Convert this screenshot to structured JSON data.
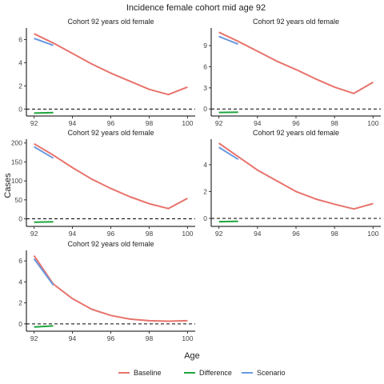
{
  "figure": {
    "title": "Incidence female cohort mid age 92",
    "xlabel": "Age",
    "ylabel": "Cases"
  },
  "legend": {
    "items": [
      {
        "label": "Baseline",
        "color": "#E8736C"
      },
      {
        "label": "Difference",
        "color": "#1EA53D"
      },
      {
        "label": "Scenario",
        "color": "#6A9AE0"
      }
    ]
  },
  "chart_data": [
    {
      "type": "line",
      "title": "Cohort 92 years old female",
      "xlim": [
        91.6,
        100.4
      ],
      "ylim": [
        -0.6,
        7.0
      ],
      "xticks": [
        92,
        94,
        96,
        98,
        100
      ],
      "yticks": [
        0,
        2,
        4,
        6
      ],
      "series": [
        {
          "name": "Baseline",
          "x": [
            92,
            93,
            94,
            95,
            96,
            97,
            98,
            99,
            100
          ],
          "y": [
            6.5,
            5.7,
            4.8,
            3.9,
            3.1,
            2.4,
            1.7,
            1.25,
            1.9
          ]
        },
        {
          "name": "Scenario",
          "x": [
            92,
            93
          ],
          "y": [
            6.1,
            5.5
          ]
        },
        {
          "name": "Difference",
          "x": [
            92,
            93
          ],
          "y": [
            -0.35,
            -0.3
          ]
        }
      ],
      "reference_line": 0
    },
    {
      "type": "line",
      "title": "Cohort 92 years old female",
      "xlim": [
        91.6,
        100.4
      ],
      "ylim": [
        -1.0,
        11.5
      ],
      "xticks": [
        92,
        94,
        96,
        98,
        100
      ],
      "yticks": [
        0,
        3,
        6,
        9
      ],
      "series": [
        {
          "name": "Baseline",
          "x": [
            92,
            93,
            94,
            95,
            96,
            97,
            98,
            99,
            100
          ],
          "y": [
            10.9,
            9.6,
            8.2,
            6.8,
            5.6,
            4.3,
            3.1,
            2.2,
            3.8
          ]
        },
        {
          "name": "Scenario",
          "x": [
            92,
            93
          ],
          "y": [
            10.3,
            9.2
          ]
        },
        {
          "name": "Difference",
          "x": [
            92,
            93
          ],
          "y": [
            -0.5,
            -0.45
          ]
        }
      ],
      "reference_line": 0
    },
    {
      "type": "line",
      "title": "Cohort 92 years old female",
      "xlim": [
        91.6,
        100.4
      ],
      "ylim": [
        -20,
        210
      ],
      "xticks": [
        92,
        94,
        96,
        98,
        100
      ],
      "yticks": [
        0,
        50,
        100,
        150,
        200
      ],
      "series": [
        {
          "name": "Baseline",
          "x": [
            92,
            93,
            94,
            95,
            96,
            97,
            98,
            99,
            100
          ],
          "y": [
            198,
            168,
            135,
            105,
            80,
            58,
            40,
            27,
            54
          ]
        },
        {
          "name": "Scenario",
          "x": [
            92,
            93
          ],
          "y": [
            190,
            160
          ]
        },
        {
          "name": "Difference",
          "x": [
            92,
            93
          ],
          "y": [
            -9,
            -8
          ]
        }
      ],
      "reference_line": 0
    },
    {
      "type": "line",
      "title": "Cohort 92 years old female",
      "xlim": [
        91.6,
        100.4
      ],
      "ylim": [
        -0.6,
        5.9
      ],
      "xticks": [
        92,
        94,
        96,
        98,
        100
      ],
      "yticks": [
        0,
        2,
        4
      ],
      "series": [
        {
          "name": "Baseline",
          "x": [
            92,
            93,
            94,
            95,
            96,
            97,
            98,
            99,
            100
          ],
          "y": [
            5.6,
            4.6,
            3.6,
            2.8,
            2.0,
            1.45,
            1.05,
            0.7,
            1.1
          ]
        },
        {
          "name": "Scenario",
          "x": [
            92,
            93
          ],
          "y": [
            5.3,
            4.4
          ]
        },
        {
          "name": "Difference",
          "x": [
            92,
            93
          ],
          "y": [
            -0.25,
            -0.22
          ]
        }
      ],
      "reference_line": 0
    },
    {
      "type": "line",
      "title": "Cohort 92 years old female",
      "xlim": [
        91.6,
        100.4
      ],
      "ylim": [
        -0.7,
        7.0
      ],
      "xticks": [
        92,
        94,
        96,
        98,
        100
      ],
      "yticks": [
        0,
        2,
        4,
        6
      ],
      "series": [
        {
          "name": "Baseline",
          "x": [
            92,
            93,
            94,
            95,
            96,
            97,
            98,
            99,
            100
          ],
          "y": [
            6.5,
            3.8,
            2.4,
            1.4,
            0.8,
            0.45,
            0.3,
            0.25,
            0.3
          ]
        },
        {
          "name": "Scenario",
          "x": [
            92,
            93
          ],
          "y": [
            6.2,
            3.7
          ]
        },
        {
          "name": "Difference",
          "x": [
            92,
            93
          ],
          "y": [
            -0.3,
            -0.2
          ]
        }
      ],
      "reference_line": 0
    }
  ]
}
